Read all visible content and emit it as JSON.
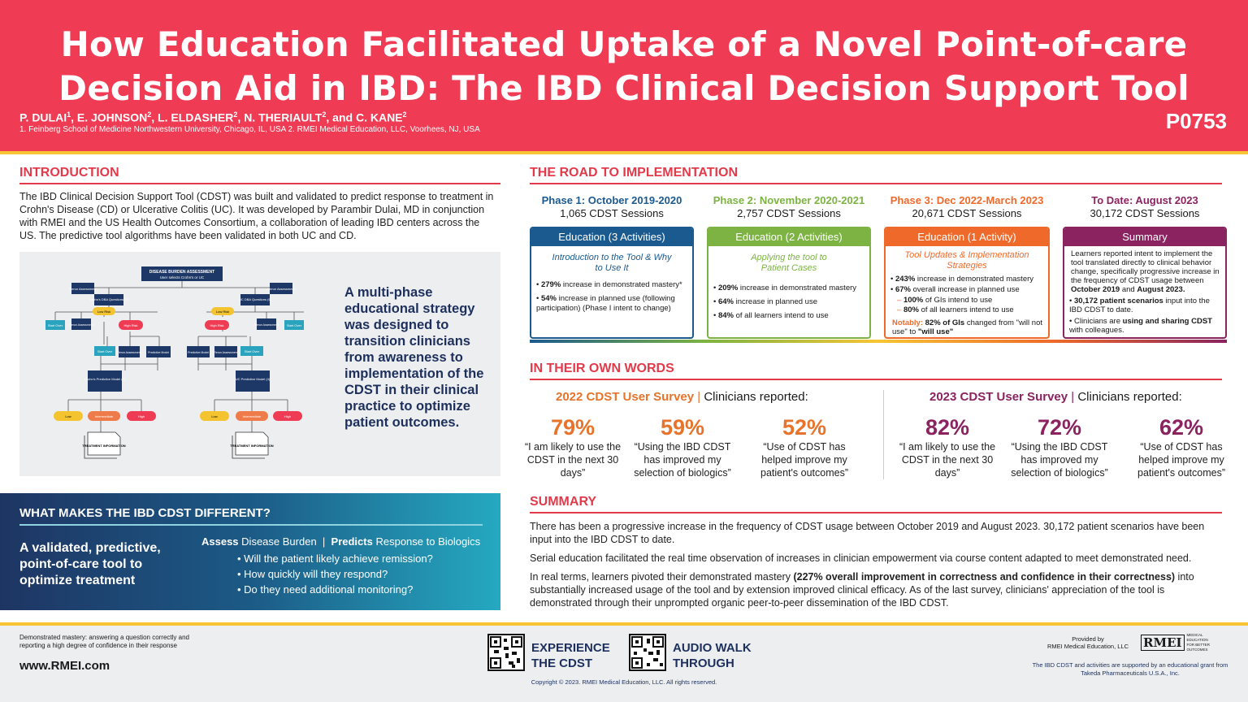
{
  "header": {
    "title_line1": "How Education Facilitated Uptake of a Novel Point-of-care",
    "title_line2": "Decision Aid in IBD: The IBD Clinical Decision Support Tool",
    "authors": [
      {
        "name": "P. DULAI",
        "sup": "1"
      },
      {
        "name": "E. JOHNSON",
        "sup": "2"
      },
      {
        "name": "L. ELDASHER",
        "sup": "2"
      },
      {
        "name": "N. THERIAULT",
        "sup": "2"
      },
      {
        "name": "C. KANE",
        "sup": "2"
      }
    ],
    "and_word": "and",
    "affiliations": "1. Feinberg School of Medicine Northwestern University, Chicago, IL, USA  2. RMEI Medical Education, LLC, Voorhees, NJ, USA",
    "poster_id": "P0753"
  },
  "intro": {
    "heading": "INTRODUCTION",
    "text": "The IBD Clinical Decision Support Tool (CDST) was built and validated to predict response to treatment in Crohn's Disease (CD) or Ulcerative Colitis (UC). It was developed by Parambir Dulai, MD in conjunction with RMEI and the US Health Outcomes Consortium, a collaboration of leading IBD centers across the US. The predictive tool algorithms have been validated in both UC and CD.",
    "diagram_caption": "A multi-phase educational strategy was designed to transition clinicians from awareness to implementation of the CDST in their clinical practice to optimize patient outcomes.",
    "diagram": {
      "top_title": "DISEASE BURDEN ASSESSMENT",
      "top_sub": "User selects Crohn's or UC",
      "rerun": "Rerun Assessment",
      "crohns_dba": "Crohn's DBA Questions (7)",
      "uc_dba": "UC DBA Questions (6)",
      "low_risk": "Low Risk",
      "high_risk": "High Risk",
      "start_over": "Start Over",
      "predictive_model": "Predictive Model",
      "crohns_pm": "Crohn's Predictive Model (7)",
      "uc_pm": "UC Predictive Model (4)",
      "low": "Low",
      "intermediate": "Intermediate",
      "high": "High",
      "treatment_info": "TREATMENT INFORMATION"
    }
  },
  "different": {
    "heading": "WHAT MAKES THE IBD CDST DIFFERENT?",
    "left_text": "A validated, predictive, point-of-care tool to optimize treatment",
    "assess_bold": "Assess",
    "assess_text": "Disease Burden",
    "sep": "|",
    "predicts_bold": "Predicts",
    "predicts_text": "Response to Biologics",
    "questions": [
      "Will the patient likely achieve remission?",
      "How quickly will they respond?",
      "Do they need additional monitoring?"
    ]
  },
  "road": {
    "heading": "THE ROAD TO IMPLEMENTATION",
    "phases": [
      {
        "title": "Phase 1: October 2019-2020",
        "sessions": "1,065 CDST Sessions",
        "card_title": "Education (3 Activities)",
        "subtitle": "Introduction to the Tool & Why to Use It",
        "b1_bold": "279%",
        "b1_text": " increase in demonstrated mastery*",
        "b2_bold": "54%",
        "b2_text": " increase in planned use (following participation) (Phase I intent to change)"
      },
      {
        "title": "Phase 2: November 2020-2021",
        "sessions": "2,757 CDST Sessions",
        "card_title": "Education (2 Activities)",
        "subtitle": "Applying the tool to Patient Cases",
        "b1_bold": "209%",
        "b1_text": " increase in demonstrated mastery",
        "b2_bold": "64%",
        "b2_text": " increase in planned use",
        "b3_bold": "84%",
        "b3_text": " of all learners intend to use"
      },
      {
        "title": "Phase 3: Dec 2022-March 2023",
        "sessions": "20,671 CDST Sessions",
        "card_title": "Education (1 Activity)",
        "subtitle": "Tool Updates & Implementation Strategies",
        "b1_bold": "243%",
        "b1_text": " increase in demonstrated mastery",
        "b2_bold": "67%",
        "b2_text": " overall increase in planned use",
        "s1_bold": "100%",
        "s1_text": " of GIs intend to use",
        "s2_bold": "80%",
        "s2_text": " of all learners intend to use",
        "notably_label": "Notably:",
        "notably_bold": " 82% of GIs",
        "notably_text": " changed from \"will not use\" to ",
        "notably_end": "\"will use\""
      },
      {
        "title": "To Date: August 2023",
        "sessions": "30,172 CDST Sessions",
        "card_title": "Summary",
        "text_a": "Learners reported intent to implement the tool translated directly to clinical behavior change, specifically progressive increase in the frequency of CDST usage between ",
        "text_b": "October 2019",
        "text_c": " and ",
        "text_d": "August 2023.",
        "b1_bold": "30,172 patient scenarios",
        "b1_text": " input into the IBD CDST to date.",
        "b2_text": "Clinicians are ",
        "b2_bold": "using and sharing CDST",
        "b2_end": " with colleagues."
      }
    ]
  },
  "words": {
    "heading": "IN THEIR OWN WORDS",
    "survey_2022": {
      "year_title": "2022 CDST User Survey",
      "sep": "|",
      "reported": "Clinicians reported:"
    },
    "survey_2023": {
      "year_title": "2023 CDST User Survey",
      "sep": "|",
      "reported": "Clinicians reported:"
    },
    "stats_2022": [
      {
        "pct": "79%",
        "quote": "“I am likely to use the CDST in the next 30 days”"
      },
      {
        "pct": "59%",
        "quote": "“Using the IBD CDST has improved my selection of biologics”"
      },
      {
        "pct": "52%",
        "quote": "“Use of CDST has helped improve my patient's outcomes”"
      }
    ],
    "stats_2023": [
      {
        "pct": "82%",
        "quote": "“I am likely to use the CDST in the next 30 days”"
      },
      {
        "pct": "72%",
        "quote": "“Using the IBD CDST has improved my selection of biologics”"
      },
      {
        "pct": "62%",
        "quote": "“Use of CDST has helped improve my patient's outcomes”"
      }
    ]
  },
  "summary": {
    "heading": "SUMMARY",
    "p1": "There has been a progressive increase in the frequency of CDST usage between October 2019 and August 2023. 30,172 patient scenarios have been input into the IBD CDST to date.",
    "p2": "Serial education facilitated the real time observation of increases in clinician empowerment via course content adapted to meet demonstrated need.",
    "p3a": "In real terms, learners pivoted their demonstrated mastery ",
    "p3b": "(227% overall improvement in correctness and confidence in their correctness)",
    "p3c": " into substantially increased usage of the tool and by extension improved clinical efficacy. As of the last survey, clinicians' appreciation of the tool is demonstrated through their unprompted organic peer-to-peer dissemination of the IBD CDST."
  },
  "footer": {
    "note": "Demonstrated mastery: answering a question correctly and reporting a high degree of confidence in their response",
    "url": "www.RMEI.com",
    "qr1_label_l1": "EXPERIENCE",
    "qr1_label_l2": "THE CDST",
    "qr2_label_l1": "AUDIO WALK",
    "qr2_label_l2": "THROUGH",
    "copyright": "Copyright © 2023. RMEI Medical Education, LLC. All rights reserved.",
    "provided_l1": "Provided by",
    "provided_l2": "RMEI Medical Education, LLC",
    "logo_mark": "RMEI",
    "logo_text_l1": "MEDICAL EDUCATION",
    "logo_text_l2": "FOR BETTER OUTCOMES",
    "grant": "The IBD CDST and activities are supported by an educational grant from Takeda Pharmaceuticals U.S.A., Inc."
  },
  "colors": {
    "header_red": "#ef3b54",
    "accent_yellow": "#f7c533",
    "navy": "#1d2f5c",
    "phase1": "#1b5a8f",
    "phase2": "#7cb342",
    "phase3": "#ef6a2a",
    "summary_purple": "#8a2360",
    "stat_2022": "#e8732a",
    "stat_2023": "#8a2360"
  }
}
